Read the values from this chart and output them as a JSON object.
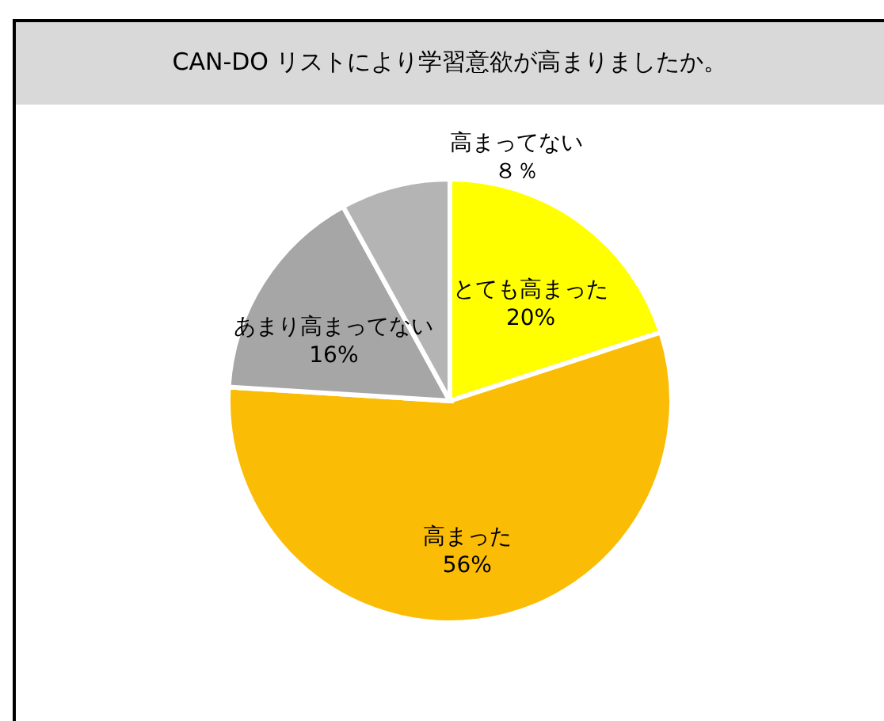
{
  "chart_data": {
    "type": "pie",
    "title": "CAN-DO リストにより学習意欲が高まりましたか。",
    "categories": [
      "とても高まった",
      "高まった",
      "あまり高まってない",
      "高まってない"
    ],
    "values": [
      20,
      56,
      16,
      8
    ],
    "colors": [
      "#ffff00",
      "#fbbc05",
      "#a6a6a6",
      "#b4b4b4"
    ],
    "value_labels": [
      "20%",
      "56%",
      "16%",
      "８％"
    ]
  }
}
